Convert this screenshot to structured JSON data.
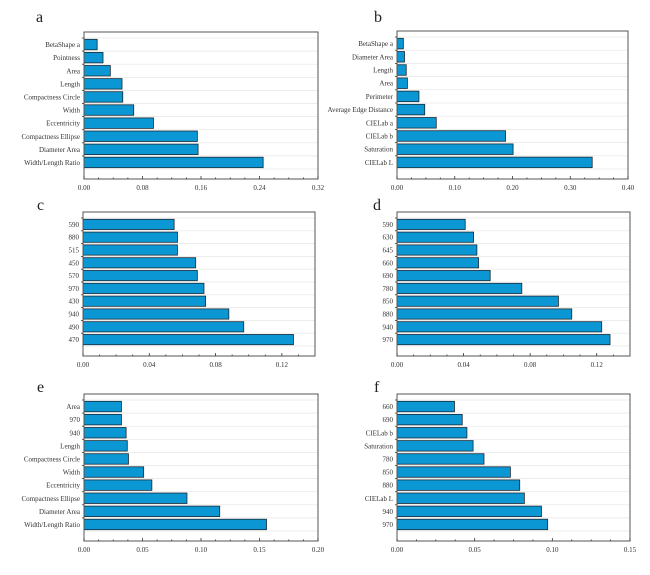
{
  "chart_data": [
    {
      "type": "bar",
      "orientation": "horizontal",
      "panel": "a",
      "categories": [
        "BetaShape a",
        "Pointness",
        "Area",
        "Length",
        "Compactness Circle",
        "Width",
        "Eccentricity",
        "Compactness Ellipse",
        "Diameter Area",
        "Width/Length Ratio"
      ],
      "values": [
        0.018,
        0.026,
        0.036,
        0.052,
        0.053,
        0.068,
        0.095,
        0.155,
        0.156,
        0.245
      ],
      "xticks": [
        "0.00",
        "0.08",
        "0.16",
        "0.24",
        "0.32"
      ],
      "xlim": [
        0,
        0.32
      ],
      "title": "",
      "xlabel": "",
      "ylabel": "",
      "grid": true,
      "bar_color": "#0a97d3"
    },
    {
      "type": "bar",
      "orientation": "horizontal",
      "panel": "b",
      "categories": [
        "BetaShape a",
        "Diameter Area",
        "Length",
        "Area",
        "Perimeter",
        "Average Edge Distance",
        "CIELab a",
        "CIELab b",
        "Saturation",
        "CIELab L"
      ],
      "values": [
        0.011,
        0.013,
        0.016,
        0.018,
        0.038,
        0.048,
        0.068,
        0.188,
        0.201,
        0.338
      ],
      "xticks": [
        "0.00",
        "0.10",
        "0.20",
        "0.30",
        "0.40"
      ],
      "xlim": [
        0,
        0.4
      ],
      "title": "",
      "xlabel": "",
      "ylabel": "",
      "grid": true,
      "bar_color": "#0a97d3"
    },
    {
      "type": "bar",
      "orientation": "horizontal",
      "panel": "c",
      "categories": [
        "590",
        "880",
        "515",
        "450",
        "570",
        "970",
        "430",
        "940",
        "490",
        "470"
      ],
      "values": [
        0.055,
        0.057,
        0.057,
        0.068,
        0.069,
        0.073,
        0.074,
        0.088,
        0.097,
        0.127
      ],
      "xticks": [
        "0.00",
        "0.04",
        "0.08",
        "0.12"
      ],
      "xlim": [
        0,
        0.14
      ],
      "title": "",
      "xlabel": "",
      "ylabel": "",
      "grid": true,
      "bar_color": "#0a97d3"
    },
    {
      "type": "bar",
      "orientation": "horizontal",
      "panel": "d",
      "categories": [
        "590",
        "630",
        "645",
        "660",
        "690",
        "780",
        "850",
        "880",
        "940",
        "970"
      ],
      "values": [
        0.041,
        0.046,
        0.048,
        0.049,
        0.056,
        0.075,
        0.097,
        0.105,
        0.123,
        0.128
      ],
      "xticks": [
        "0.00",
        "0.04",
        "0.08",
        "0.12"
      ],
      "xlim": [
        0,
        0.14
      ],
      "title": "",
      "xlabel": "",
      "ylabel": "",
      "grid": true,
      "bar_color": "#0a97d3"
    },
    {
      "type": "bar",
      "orientation": "horizontal",
      "panel": "e",
      "categories": [
        "Area",
        "970",
        "940",
        "Length",
        "Compactness Circle",
        "Width",
        "Eccentricity",
        "Compactness Ellipse",
        "Diameter Area",
        "Width/Length Ratio"
      ],
      "values": [
        0.032,
        0.032,
        0.036,
        0.037,
        0.038,
        0.051,
        0.058,
        0.088,
        0.116,
        0.156
      ],
      "xticks": [
        "0.00",
        "0.05",
        "0.10",
        "0.15",
        "0.20"
      ],
      "xlim": [
        0,
        0.2
      ],
      "title": "",
      "xlabel": "",
      "ylabel": "",
      "grid": true,
      "bar_color": "#0a97d3"
    },
    {
      "type": "bar",
      "orientation": "horizontal",
      "panel": "f",
      "categories": [
        "660",
        "690",
        "CIELab b",
        "Saturation",
        "780",
        "850",
        "880",
        "CIELab L",
        "940",
        "970"
      ],
      "values": [
        0.037,
        0.042,
        0.045,
        0.049,
        0.056,
        0.073,
        0.079,
        0.082,
        0.093,
        0.097
      ],
      "xticks": [
        "0.00",
        "0.05",
        "0.10",
        "0.15"
      ],
      "xlim": [
        0,
        0.15
      ],
      "title": "",
      "xlabel": "",
      "ylabel": "",
      "grid": true,
      "bar_color": "#0a97d3"
    }
  ]
}
